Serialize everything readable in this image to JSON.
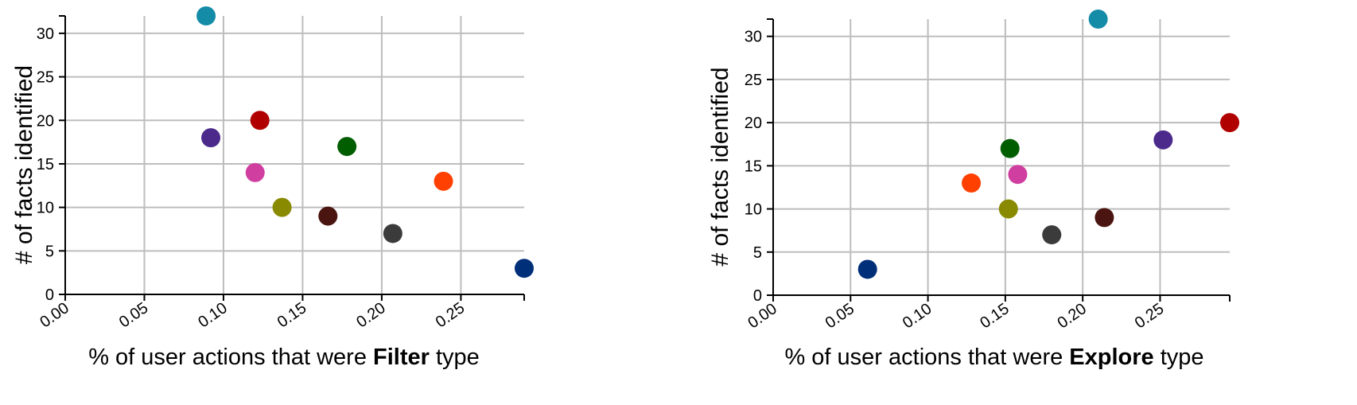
{
  "chart_data": [
    {
      "type": "scatter",
      "xlabel_pre": "% of user actions that were ",
      "xlabel_bold": "Filter",
      "xlabel_post": " type",
      "ylabel": "# of facts identified",
      "xlim": [
        0,
        0.29
      ],
      "ylim": [
        0,
        32
      ],
      "xticks": [
        "0.00",
        "0.05",
        "0.10",
        "0.15",
        "0.20",
        "0.25"
      ],
      "xtick_values": [
        0,
        0.05,
        0.1,
        0.15,
        0.2,
        0.25
      ],
      "yticks": [
        "0",
        "5",
        "10",
        "15",
        "20",
        "25",
        "30"
      ],
      "ytick_values": [
        0,
        5,
        10,
        15,
        20,
        25,
        30
      ],
      "grid": true,
      "points": [
        {
          "x": 0.089,
          "y": 32,
          "color": "#148ca8"
        },
        {
          "x": 0.092,
          "y": 18,
          "color": "#4b2a8c"
        },
        {
          "x": 0.123,
          "y": 20,
          "color": "#b00000"
        },
        {
          "x": 0.12,
          "y": 14,
          "color": "#d03fa0"
        },
        {
          "x": 0.137,
          "y": 10,
          "color": "#8a8a00"
        },
        {
          "x": 0.166,
          "y": 9,
          "color": "#4a1510"
        },
        {
          "x": 0.178,
          "y": 17,
          "color": "#005d00"
        },
        {
          "x": 0.207,
          "y": 7,
          "color": "#3b3b3b"
        },
        {
          "x": 0.239,
          "y": 13,
          "color": "#ff4000"
        },
        {
          "x": 0.29,
          "y": 3,
          "color": "#002f7a"
        }
      ]
    },
    {
      "type": "scatter",
      "xlabel_pre": "% of user actions that were ",
      "xlabel_bold": "Explore",
      "xlabel_post": " type",
      "ylabel": "# of facts identified",
      "xlim": [
        0,
        0.295
      ],
      "ylim": [
        0,
        32
      ],
      "xticks": [
        "0.00",
        "0.05",
        "0.10",
        "0.15",
        "0.20",
        "0.25"
      ],
      "xtick_values": [
        0,
        0.05,
        0.1,
        0.15,
        0.2,
        0.25
      ],
      "yticks": [
        "0",
        "5",
        "10",
        "15",
        "20",
        "25",
        "30"
      ],
      "ytick_values": [
        0,
        5,
        10,
        15,
        20,
        25,
        30
      ],
      "grid": true,
      "points": [
        {
          "x": 0.21,
          "y": 32,
          "color": "#148ca8"
        },
        {
          "x": 0.295,
          "y": 20,
          "color": "#b00000"
        },
        {
          "x": 0.252,
          "y": 18,
          "color": "#4b2a8c"
        },
        {
          "x": 0.153,
          "y": 17,
          "color": "#005d00"
        },
        {
          "x": 0.158,
          "y": 14,
          "color": "#d03fa0"
        },
        {
          "x": 0.128,
          "y": 13,
          "color": "#ff4000"
        },
        {
          "x": 0.152,
          "y": 10,
          "color": "#8a8a00"
        },
        {
          "x": 0.214,
          "y": 9,
          "color": "#4a1510"
        },
        {
          "x": 0.18,
          "y": 7,
          "color": "#3b3b3b"
        },
        {
          "x": 0.061,
          "y": 3,
          "color": "#002f7a"
        }
      ]
    }
  ]
}
